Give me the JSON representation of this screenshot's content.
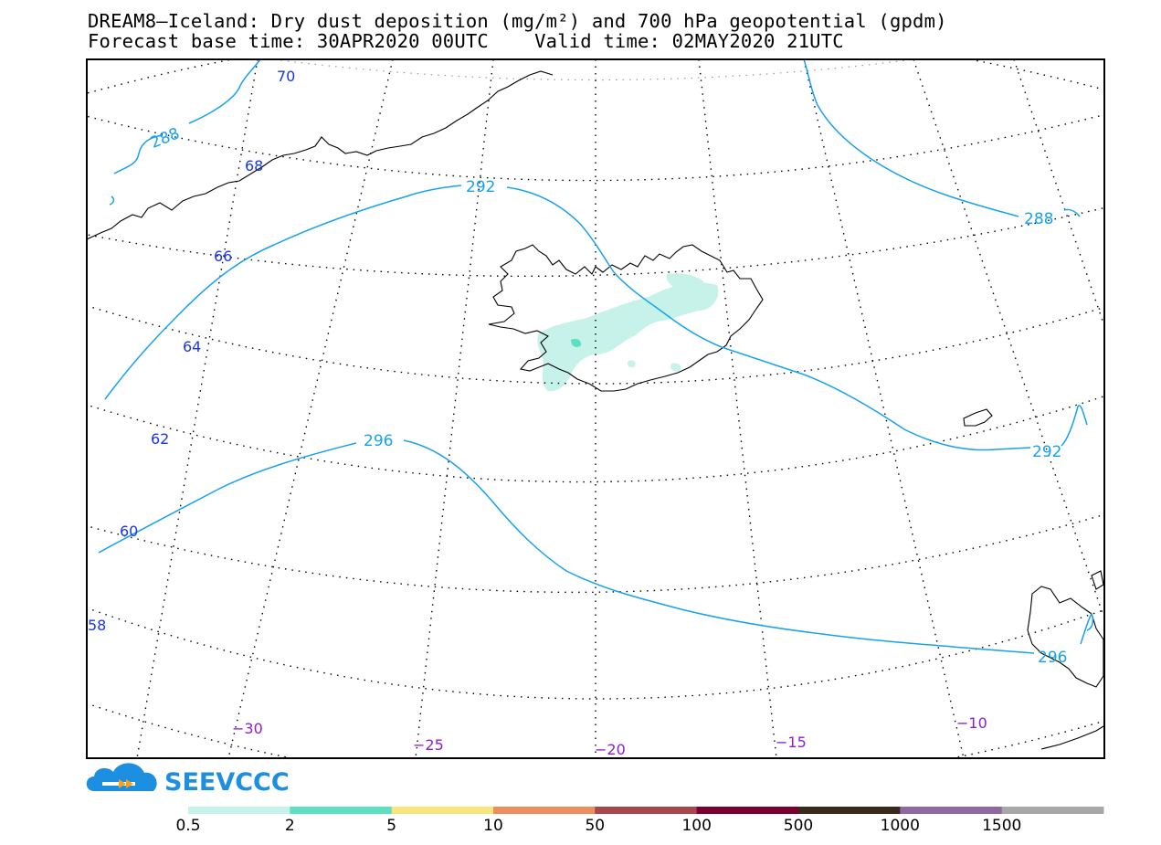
{
  "title_line1": "DREAM8—Iceland: Dry dust deposition (mg/m²) and 700 hPa geopotential (gpdm)",
  "title_line2": "Forecast base time: 30APR2020 00UTC    Valid time: 02MAY2020 21UTC",
  "logo": {
    "text": "SEEVCCC",
    "icon": "cloud-arrow-logo",
    "color": "#1d8fe0"
  },
  "latitude_labels": [
    "70",
    "68",
    "66",
    "64",
    "62",
    "60",
    "58"
  ],
  "longitude_labels": [
    "−30",
    "−25",
    "−20",
    "−15",
    "−10"
  ],
  "contours": [
    {
      "label": "288",
      "color": "#17a2ef"
    },
    {
      "label": "292",
      "color": "#17a2ef"
    },
    {
      "label": "296",
      "color": "#17a2ef"
    }
  ],
  "contour_label_instances": [
    "288",
    "292",
    "288",
    "292",
    "296",
    "296"
  ],
  "legend": {
    "thresholds": [
      "0.5",
      "2",
      "5",
      "10",
      "50",
      "100",
      "500",
      "1000",
      "1500"
    ],
    "colors": [
      "#c6f2e9",
      "#5ee0c0",
      "#f7e57e",
      "#ec8e5e",
      "#a8484c",
      "#7a0030",
      "#3a2a1c",
      "#8e6aa0",
      "#a8a8a8"
    ]
  }
}
